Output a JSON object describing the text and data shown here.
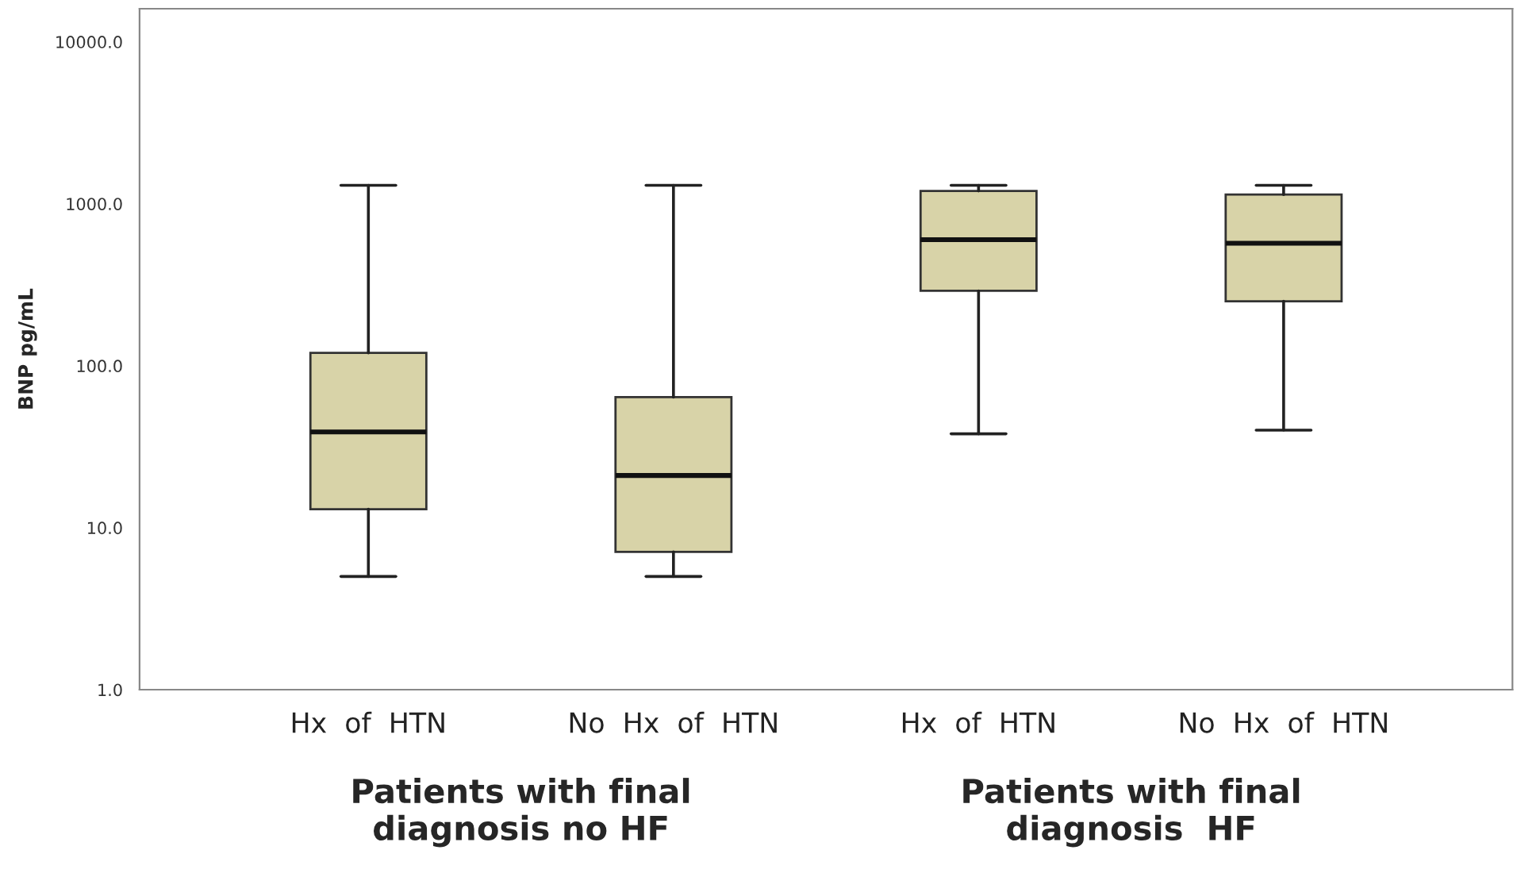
{
  "chart_data": {
    "type": "box",
    "ylabel": "BNP pg/mL",
    "log": true,
    "categories": [
      "Hx  of  HTN",
      "No  Hx  of  HTN",
      "Hx  of  HTN",
      "No  Hx  of  HTN"
    ],
    "boxes": [
      {
        "low": 5,
        "q1": 13,
        "median": 39,
        "q3": 120,
        "high": 1300
      },
      {
        "low": 5,
        "q1": 7.1,
        "median": 21,
        "q3": 64,
        "high": 1300
      },
      {
        "low": 38,
        "q1": 290,
        "median": 600,
        "q3": 1200,
        "high": 1300
      },
      {
        "low": 40,
        "q1": 250,
        "median": 570,
        "q3": 1140,
        "high": 1300
      }
    ],
    "color": "#d8d3a8",
    "ylim": [
      1,
      16000
    ],
    "yticks": [
      {
        "value": 1,
        "label": "1.0"
      },
      {
        "value": 10,
        "label": "10.0"
      },
      {
        "value": 100,
        "label": "100.0"
      },
      {
        "value": 1000,
        "label": "1000.0"
      },
      {
        "value": 10000,
        "label": "10000.0"
      }
    ],
    "grid": false,
    "annotations": [
      "Patients with final\ndiagnosis no HF",
      "Patients with final\ndiagnosis  HF"
    ]
  }
}
